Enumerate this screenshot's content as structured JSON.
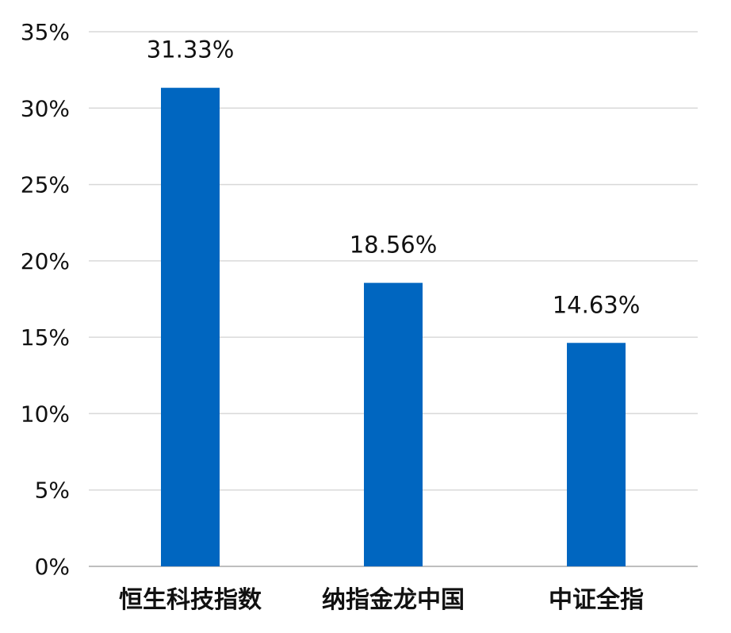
{
  "chart_data": {
    "type": "bar",
    "categories": [
      "恒生科技指数",
      "纳指金龙中国",
      "中证全指"
    ],
    "values": [
      31.33,
      18.56,
      14.63
    ],
    "data_labels": [
      "31.33%",
      "18.56%",
      "14.63%"
    ],
    "y_ticks": [
      0,
      5,
      10,
      15,
      20,
      25,
      30,
      35
    ],
    "y_tick_labels": [
      "0%",
      "5%",
      "10%",
      "15%",
      "20%",
      "25%",
      "30%",
      "35%"
    ],
    "ylim": [
      0,
      35
    ],
    "grid": true,
    "legend": "none",
    "bar_color": "#0066c0",
    "grid_color": "#d9d9d9",
    "axis_color": "#bfbfbf"
  }
}
